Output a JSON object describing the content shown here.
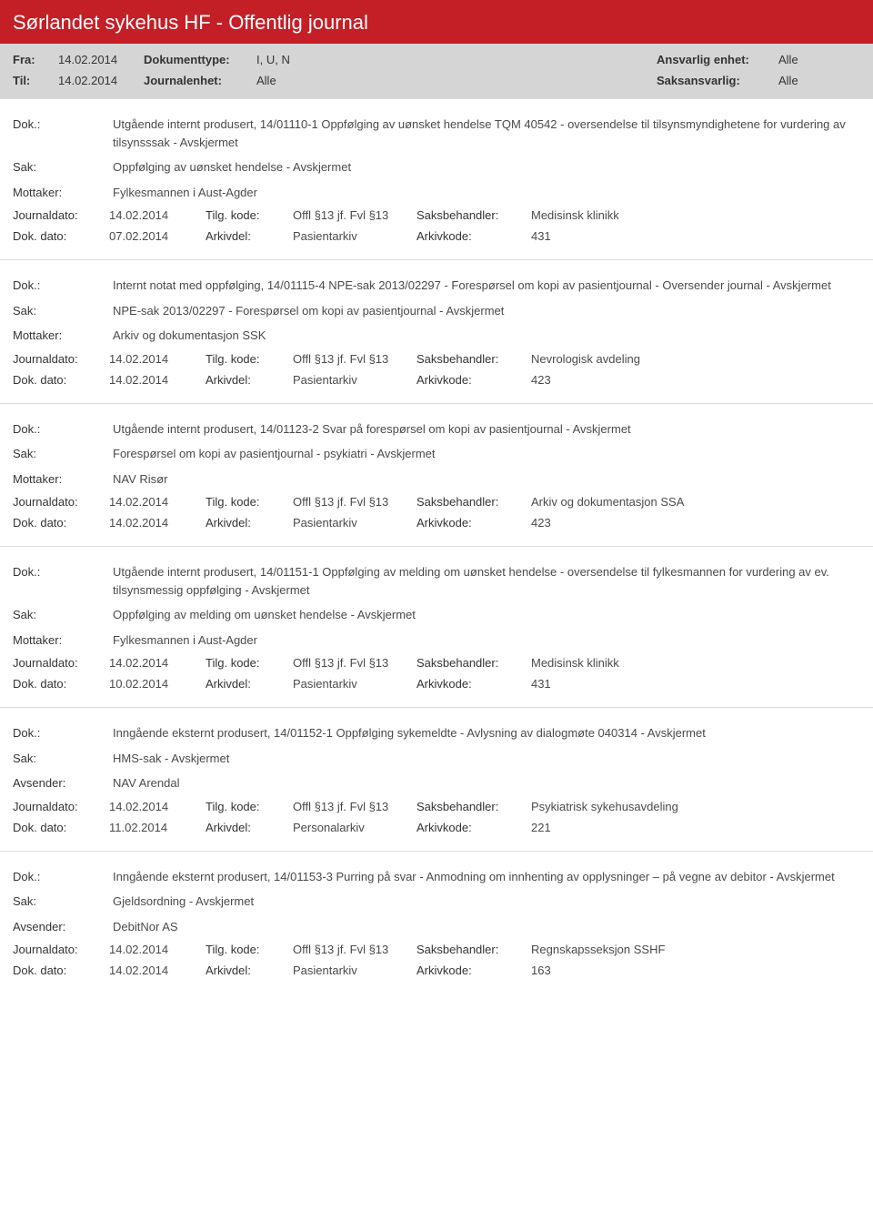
{
  "header": {
    "title": "Sørlandet sykehus HF - Offentlig journal",
    "bg_color": "#c41e27",
    "text_color": "#ffffff",
    "fra_label": "Fra:",
    "fra_value": "14.02.2014",
    "til_label": "Til:",
    "til_value": "14.02.2014",
    "doktype_label": "Dokumenttype:",
    "doktype_value": "I, U, N",
    "journalenhet_label": "Journalenhet:",
    "journalenhet_value": "Alle",
    "ansvarlig_label": "Ansvarlig enhet:",
    "ansvarlig_value": "Alle",
    "saksansvarlig_label": "Saksansvarlig:",
    "saksansvarlig_value": "Alle",
    "grey_bg": "#d5d5d5"
  },
  "labels": {
    "dok": "Dok.:",
    "sak": "Sak:",
    "mottaker": "Mottaker:",
    "avsender": "Avsender:",
    "journaldato": "Journaldato:",
    "dokdato": "Dok. dato:",
    "tilgkode": "Tilg. kode:",
    "arkivdel": "Arkivdel:",
    "saksbehandler": "Saksbehandler:",
    "arkivkode": "Arkivkode:"
  },
  "entries": [
    {
      "dok": "Utgående internt produsert, 14/01110-1 Oppfølging av uønsket hendelse TQM 40542 - oversendelse til tilsynsmyndighetene for vurdering av tilsynsssak - Avskjermet",
      "sak": "Oppfølging av uønsket hendelse - Avskjermet",
      "party_label": "Mottaker:",
      "party": "Fylkesmannen i Aust-Agder",
      "journaldato": "14.02.2014",
      "tilgkode": "Offl §13 jf. Fvl §13",
      "saksbehandler": "Medisinsk klinikk",
      "dokdato": "07.02.2014",
      "arkivdel": "Pasientarkiv",
      "arkivkode": "431"
    },
    {
      "dok": "Internt notat med oppfølging, 14/01115-4 NPE-sak 2013/02297 - Forespørsel om kopi av pasientjournal - Oversender journal - Avskjermet",
      "sak": "NPE-sak 2013/02297 - Forespørsel om kopi av pasientjournal - Avskjermet",
      "party_label": "Mottaker:",
      "party": "Arkiv og dokumentasjon SSK",
      "journaldato": "14.02.2014",
      "tilgkode": "Offl §13 jf. Fvl §13",
      "saksbehandler": "Nevrologisk avdeling",
      "dokdato": "14.02.2014",
      "arkivdel": "Pasientarkiv",
      "arkivkode": "423"
    },
    {
      "dok": "Utgående internt produsert, 14/01123-2 Svar på forespørsel om kopi av pasientjournal - Avskjermet",
      "sak": "Forespørsel om kopi av pasientjournal - psykiatri - Avskjermet",
      "party_label": "Mottaker:",
      "party": "NAV Risør",
      "journaldato": "14.02.2014",
      "tilgkode": "Offl §13 jf. Fvl §13",
      "saksbehandler": "Arkiv og dokumentasjon SSA",
      "dokdato": "14.02.2014",
      "arkivdel": "Pasientarkiv",
      "arkivkode": "423"
    },
    {
      "dok": "Utgående internt produsert, 14/01151-1 Oppfølging av melding om uønsket hendelse - oversendelse til fylkesmannen for vurdering av ev. tilsynsmessig oppfølging - Avskjermet",
      "sak": "Oppfølging av melding om uønsket hendelse - Avskjermet",
      "party_label": "Mottaker:",
      "party": "Fylkesmannen i Aust-Agder",
      "journaldato": "14.02.2014",
      "tilgkode": "Offl §13 jf. Fvl §13",
      "saksbehandler": "Medisinsk klinikk",
      "dokdato": "10.02.2014",
      "arkivdel": "Pasientarkiv",
      "arkivkode": "431"
    },
    {
      "dok": "Inngående eksternt produsert, 14/01152-1 Oppfølging sykemeldte - Avlysning av dialogmøte 040314 - Avskjermet",
      "sak": "HMS-sak - Avskjermet",
      "party_label": "Avsender:",
      "party": "NAV Arendal",
      "journaldato": "14.02.2014",
      "tilgkode": "Offl §13 jf. Fvl §13",
      "saksbehandler": "Psykiatrisk sykehusavdeling",
      "dokdato": "11.02.2014",
      "arkivdel": "Personalarkiv",
      "arkivkode": "221"
    },
    {
      "dok": "Inngående eksternt produsert, 14/01153-3 Purring på svar - Anmodning om innhenting av opplysninger – på vegne av debitor - Avskjermet",
      "sak": "Gjeldsordning - Avskjermet",
      "party_label": "Avsender:",
      "party": "DebitNor AS",
      "journaldato": "14.02.2014",
      "tilgkode": "Offl §13 jf. Fvl §13",
      "saksbehandler": "Regnskapsseksjon SSHF",
      "dokdato": "14.02.2014",
      "arkivdel": "Pasientarkiv",
      "arkivkode": "163"
    }
  ]
}
